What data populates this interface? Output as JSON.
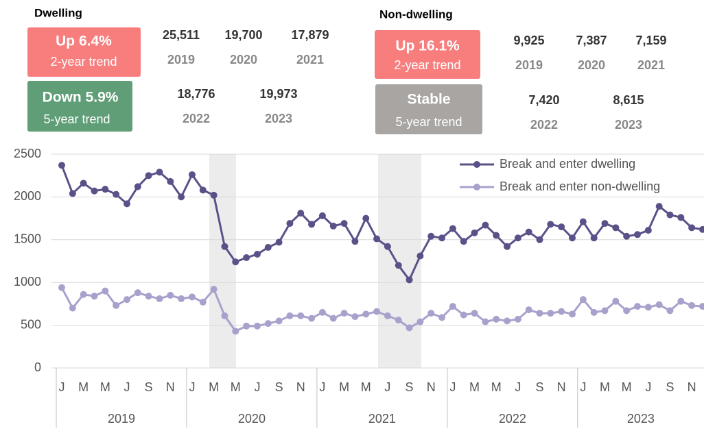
{
  "summary": {
    "dwelling": {
      "title": "Dwelling",
      "two_year": {
        "headline": "Up 6.4%",
        "label": "2-year trend"
      },
      "five_year": {
        "headline": "Down 5.9%",
        "label": "5-year trend"
      },
      "totals": [
        {
          "value": "25,511",
          "year": "2019"
        },
        {
          "value": "19,700",
          "year": "2020"
        },
        {
          "value": "17,879",
          "year": "2021"
        },
        {
          "value": "18,776",
          "year": "2022"
        },
        {
          "value": "19,973",
          "year": "2023"
        }
      ]
    },
    "non_dwelling": {
      "title": "Non-dwelling",
      "two_year": {
        "headline": "Up 16.1%",
        "label": "2-year trend"
      },
      "five_year": {
        "headline": "Stable",
        "label": "5-year trend"
      },
      "totals": [
        {
          "value": "9,925",
          "year": "2019"
        },
        {
          "value": "7,387",
          "year": "2020"
        },
        {
          "value": "7,159",
          "year": "2021"
        },
        {
          "value": "7,420",
          "year": "2022"
        },
        {
          "value": "8,615",
          "year": "2023"
        }
      ]
    }
  },
  "chart_data": {
    "type": "line",
    "categories": [
      "J",
      null,
      "M",
      null,
      "M",
      null,
      "J",
      null,
      "S",
      null,
      "N",
      null,
      "J",
      null,
      "M",
      null,
      "M",
      null,
      "J",
      null,
      "S",
      null,
      "N",
      null,
      "J",
      null,
      "M",
      null,
      "M",
      null,
      "J",
      null,
      "S",
      null,
      "N",
      null,
      "J",
      null,
      "M",
      null,
      "M",
      null,
      "J",
      null,
      "S",
      null,
      "N",
      null,
      "J",
      null,
      "M",
      null,
      "M",
      null,
      "J",
      null,
      "S",
      null,
      "N",
      null
    ],
    "year_labels": [
      "2019",
      "2020",
      "2021",
      "2022",
      "2023"
    ],
    "series": [
      {
        "name": "Break and enter dwelling",
        "color": "#5b5189",
        "values": [
          2370,
          2040,
          2160,
          2070,
          2090,
          2030,
          1920,
          2120,
          2250,
          2290,
          2180,
          2000,
          2260,
          2080,
          2020,
          1420,
          1240,
          1290,
          1330,
          1410,
          1470,
          1690,
          1810,
          1680,
          1780,
          1660,
          1690,
          1480,
          1750,
          1510,
          1420,
          1200,
          1030,
          1310,
          1540,
          1520,
          1630,
          1480,
          1580,
          1670,
          1550,
          1420,
          1520,
          1590,
          1500,
          1680,
          1650,
          1520,
          1710,
          1520,
          1690,
          1640,
          1540,
          1560,
          1610,
          1890,
          1790,
          1760,
          1640,
          1620
        ]
      },
      {
        "name": "Break and enter non-dwelling",
        "color": "#a9a1cc",
        "values": [
          940,
          700,
          860,
          840,
          900,
          730,
          800,
          880,
          840,
          810,
          850,
          810,
          830,
          770,
          920,
          610,
          430,
          490,
          490,
          520,
          550,
          610,
          610,
          580,
          650,
          580,
          640,
          600,
          630,
          660,
          610,
          560,
          470,
          540,
          640,
          590,
          720,
          620,
          640,
          540,
          570,
          550,
          570,
          680,
          640,
          640,
          660,
          630,
          800,
          650,
          670,
          780,
          670,
          720,
          710,
          740,
          670,
          780,
          730,
          720
        ]
      }
    ],
    "ylim": [
      0,
      2500
    ],
    "yticks": [
      0,
      500,
      1000,
      1500,
      2000,
      2500
    ],
    "grid": true,
    "legend": "upper right"
  }
}
